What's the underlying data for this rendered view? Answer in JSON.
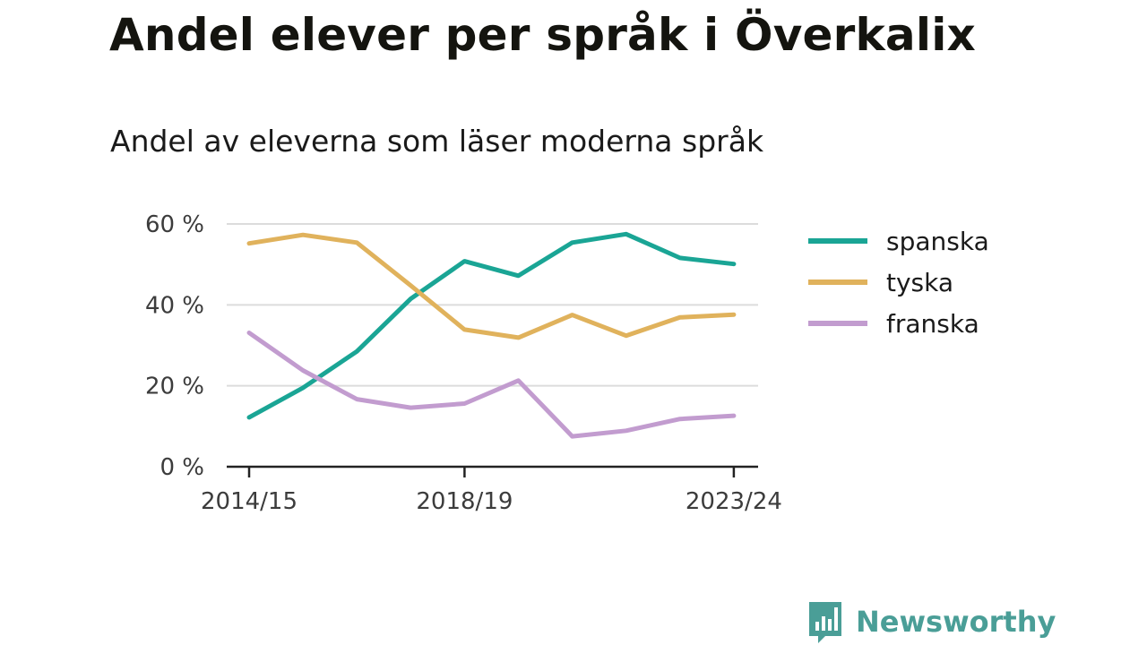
{
  "title": "Andel elever per språk i Överkalix",
  "subtitle": "Andel av eleverna som läser moderna språk",
  "brand": {
    "name": "Newsworthy",
    "icon": "newsworthy-logo-icon",
    "color": "#4a9e97"
  },
  "chart_data": {
    "type": "line",
    "title": "Andel elever per språk i Överkalix",
    "subtitle": "Andel av eleverna som läser moderna språk",
    "xlabel": "",
    "ylabel": "",
    "x": [
      "2014/15",
      "2015/16",
      "2016/17",
      "2017/18",
      "2018/19",
      "2019/20",
      "2020/21",
      "2021/22",
      "2022/23",
      "2023/24"
    ],
    "x_ticks": [
      "2014/15",
      "2018/19",
      "2023/24"
    ],
    "y_ticks": [
      {
        "value": 0,
        "label": "0 %"
      },
      {
        "value": 20,
        "label": "20 %"
      },
      {
        "value": 40,
        "label": "40 %"
      },
      {
        "value": 60,
        "label": "60 %"
      }
    ],
    "ylim": [
      0,
      60
    ],
    "grid": true,
    "legend_position": "right",
    "series": [
      {
        "name": "spanska",
        "color": "#1aa595",
        "values": [
          12.2,
          19.5,
          28.5,
          41.5,
          50.8,
          47.2,
          55.4,
          57.5,
          51.6,
          50.1
        ]
      },
      {
        "name": "tyska",
        "color": "#e0b25c",
        "values": [
          55.2,
          57.3,
          55.4,
          44.8,
          33.9,
          31.9,
          37.5,
          32.4,
          36.9,
          37.6
        ]
      },
      {
        "name": "franska",
        "color": "#c29ccf",
        "values": [
          33.1,
          23.8,
          16.7,
          14.6,
          15.6,
          21.3,
          7.5,
          8.9,
          11.8,
          12.6
        ]
      }
    ]
  }
}
